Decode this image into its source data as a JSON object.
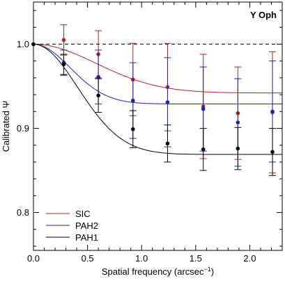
{
  "chart_data": {
    "type": "scatter",
    "title": "Y Oph",
    "xlabel": "Spatial frequency (arcsec",
    "xlabel_sup": "−1",
    "xlabel_close": ")",
    "ylabel": "Calibrated Ψ",
    "xlim": [
      0,
      2.3
    ],
    "ylim": [
      0.755,
      1.05
    ],
    "x_ticks": [
      0.0,
      0.5,
      1.0,
      1.5,
      2.0
    ],
    "x_tick_labels": [
      "0.0",
      "0.5",
      "1.0",
      "1.5",
      "2.0"
    ],
    "x_minor_step": 0.1,
    "y_ticks": [
      0.8,
      0.9,
      1.0
    ],
    "y_tick_labels": [
      "0.8",
      "0.9",
      "1.0"
    ],
    "y_minor_step": 0.02,
    "reference_line": 1.0,
    "grid": false,
    "legend_position": "bottom-left",
    "x": [
      0.0,
      0.28,
      0.6,
      0.92,
      1.24,
      1.57,
      1.89,
      2.21
    ],
    "series": [
      {
        "name": "SIC",
        "color": "#b22222",
        "values": [
          1.0,
          1.005,
          0.988,
          0.958,
          0.949,
          0.926,
          0.918,
          0.919
        ],
        "errors": [
          0.0,
          0.018,
          0.028,
          0.043,
          0.052,
          0.062,
          0.055,
          0.072
        ],
        "model_plateau": 0.942,
        "model_scale": 0.82
      },
      {
        "name": "PAH2",
        "color": "#1f1fb0",
        "values": [
          1.0,
          0.978,
          0.961,
          0.933,
          0.931,
          0.923,
          0.907,
          0.92
        ],
        "errors": [
          0.0,
          0.015,
          0.032,
          0.045,
          0.053,
          0.05,
          0.052,
          0.06
        ],
        "model_plateau": 0.929,
        "model_scale": 0.48
      },
      {
        "name": "PAH1",
        "color": "#000000",
        "values": [
          1.0,
          0.976,
          0.939,
          0.899,
          0.882,
          0.875,
          0.876,
          0.872
        ],
        "errors": [
          0.0,
          0.012,
          0.02,
          0.022,
          0.022,
          0.025,
          0.025,
          0.028
        ],
        "model_plateau": 0.869,
        "model_scale": 0.58
      }
    ]
  }
}
